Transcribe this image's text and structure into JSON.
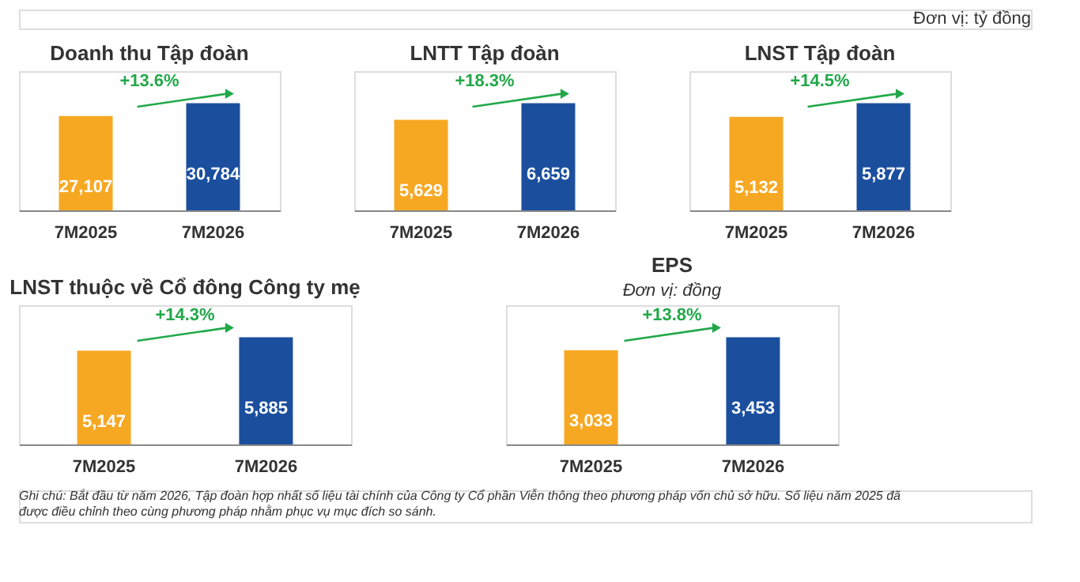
{
  "chart_data": [
    {
      "type": "other",
      "annotations": [
        "Đơn vị: tỷ đồng",
        "Ghi chú: Bắt đầu từ năm 2026, Tập đoàn hợp nhất số liệu tài chính của Công ty Cổ phần Viễn thông theo phương pháp vốn chủ sở hữu. Số liệu năm 2025 đã được điều chỉnh theo cùng phương pháp nhằm phục vụ mục đích so sánh."
      ]
    },
    {
      "type": "bar",
      "title": "Doanh thu Tập đoàn",
      "categories": [
        "7M2025",
        "7M2026"
      ],
      "values": [
        27107,
        30784
      ],
      "value_labels": [
        "27,107",
        "30,784"
      ],
      "colors": [
        "#f7a823",
        "#1b4f9e"
      ],
      "tick_labels": "x",
      "grid": false,
      "annotations": [
        "+13.6%"
      ]
    },
    {
      "type": "bar",
      "title": "LNTT Tập đoàn",
      "categories": [
        "7M2025",
        "7M2026"
      ],
      "values": [
        5629,
        6659
      ],
      "value_labels": [
        "5,629",
        "6,659"
      ],
      "colors": [
        "#f7a823",
        "#1b4f9e"
      ],
      "tick_labels": "x",
      "grid": false,
      "annotations": [
        "+18.3%"
      ]
    },
    {
      "type": "bar",
      "title": "LNST Tập đoàn",
      "categories": [
        "7M2025",
        "7M2026"
      ],
      "values": [
        5132,
        5877
      ],
      "value_labels": [
        "5,132",
        "5,877"
      ],
      "colors": [
        "#f7a823",
        "#1b4f9e"
      ],
      "tick_labels": "x",
      "grid": false,
      "annotations": [
        "+14.5%"
      ]
    },
    {
      "type": "bar",
      "title": "LNST thuộc về Cổ đông Công ty mẹ",
      "categories": [
        "7M2025",
        "7M2026"
      ],
      "values": [
        5147,
        5885
      ],
      "value_labels": [
        "5,147",
        "5,885"
      ],
      "colors": [
        "#f7a823",
        "#1b4f9e"
      ],
      "tick_labels": "x",
      "grid": false,
      "annotations": [
        "+14.3%"
      ]
    },
    {
      "type": "bar",
      "title": "EPS",
      "subtitle": "Đơn vị: đồng",
      "categories": [
        "7M2025",
        "7M2026"
      ],
      "values": [
        3033,
        3453
      ],
      "value_labels": [
        "3,033",
        "3,453"
      ],
      "colors": [
        "#f7a823",
        "#1b4f9e"
      ],
      "tick_labels": "x",
      "grid": false,
      "annotations": [
        "+13.8%"
      ]
    }
  ]
}
